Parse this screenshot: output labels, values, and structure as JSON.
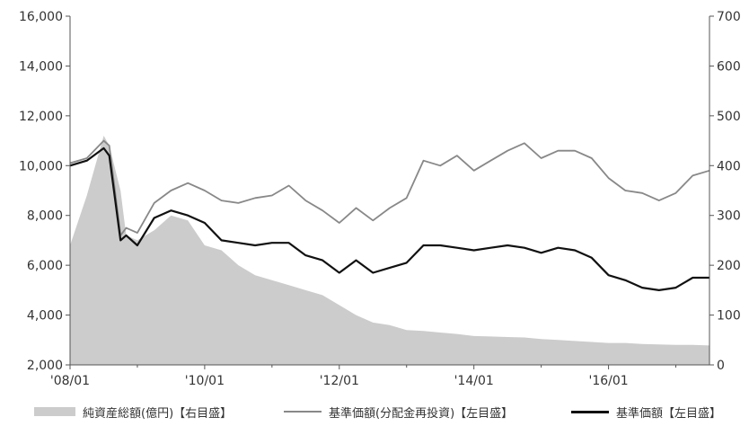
{
  "chart_data": {
    "type": "line",
    "x_labels": [
      "'08/01",
      "'10/01",
      "'12/01",
      "'14/01",
      "'16/01"
    ],
    "x": [
      "2008/01",
      "2008/04",
      "2008/07",
      "2008/08",
      "2008/10",
      "2008/11",
      "2009/01",
      "2009/04",
      "2009/07",
      "2009/10",
      "2010/01",
      "2010/04",
      "2010/07",
      "2010/10",
      "2011/01",
      "2011/04",
      "2011/07",
      "2011/10",
      "2012/01",
      "2012/04",
      "2012/07",
      "2012/10",
      "2013/01",
      "2013/04",
      "2013/07",
      "2013/10",
      "2014/01",
      "2014/04",
      "2014/07",
      "2014/10",
      "2015/01",
      "2015/04",
      "2015/07",
      "2015/10",
      "2016/01",
      "2016/04",
      "2016/07",
      "2016/10",
      "2017/01",
      "2017/04",
      "2017/07"
    ],
    "left_axis": {
      "ylim": [
        2000,
        16000
      ],
      "ticks": [
        "2,000",
        "4,000",
        "6,000",
        "8,000",
        "10,000",
        "12,000",
        "14,000",
        "16,000"
      ]
    },
    "right_axis": {
      "ylim": [
        0,
        700
      ],
      "ticks": [
        "0",
        "100",
        "200",
        "300",
        "400",
        "500",
        "600",
        "700"
      ]
    },
    "series": [
      {
        "name": "純資産総額(億円)【右目盛】",
        "axis": "right",
        "kind": "area",
        "color": "#cccccc",
        "values": [
          240,
          340,
          460,
          440,
          350,
          260,
          250,
          270,
          300,
          290,
          240,
          230,
          200,
          180,
          170,
          160,
          150,
          140,
          120,
          100,
          85,
          80,
          70,
          68,
          65,
          62,
          58,
          57,
          56,
          55,
          52,
          50,
          48,
          46,
          44,
          44,
          42,
          41,
          40,
          40,
          39
        ]
      },
      {
        "name": "基準価額(分配金再投資)【左目盛】",
        "axis": "left",
        "kind": "line",
        "color": "#888888",
        "values": [
          10100,
          10300,
          11000,
          10800,
          7200,
          7500,
          7300,
          8500,
          9000,
          9300,
          9000,
          8600,
          8500,
          8700,
          8800,
          9200,
          8600,
          8200,
          7700,
          8300,
          7800,
          8300,
          8700,
          10200,
          10000,
          10400,
          9800,
          10200,
          10600,
          10900,
          10300,
          10600,
          10600,
          10300,
          9500,
          9000,
          8900,
          8600,
          8900,
          9600,
          9800
        ]
      },
      {
        "name": "基準価額【左目盛】",
        "axis": "left",
        "kind": "line",
        "color": "#111111",
        "values": [
          10000,
          10200,
          10700,
          10400,
          7000,
          7200,
          6800,
          7900,
          8200,
          8000,
          7700,
          7000,
          6900,
          6800,
          6900,
          6900,
          6400,
          6200,
          5700,
          6200,
          5700,
          5900,
          6100,
          6800,
          6800,
          6700,
          6600,
          6700,
          6800,
          6700,
          6500,
          6700,
          6600,
          6300,
          5600,
          5400,
          5100,
          5000,
          5100,
          5500,
          5500
        ]
      }
    ],
    "legend": [
      "純資産総額(億円)【右目盛】",
      "基準価額(分配金再投資)【左目盛】",
      "基準価額【左目盛】"
    ],
    "grid": false,
    "legend_position": "bottom"
  }
}
